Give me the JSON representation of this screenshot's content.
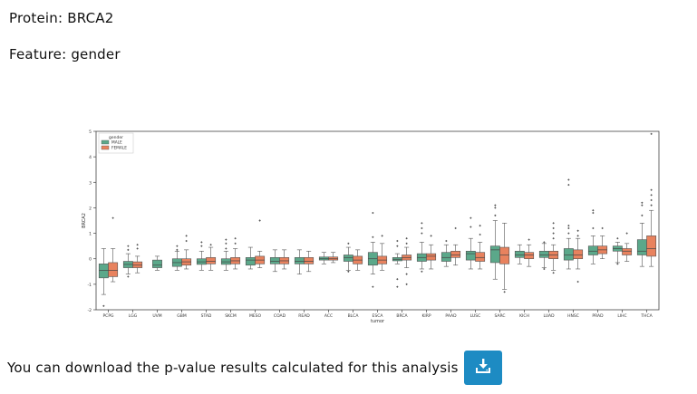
{
  "protein_prefix": "Protein: ",
  "protein": "BRCA2",
  "feature_prefix": "Feature: ",
  "feature": "gender",
  "download": {
    "text": "You can download the p-value results calculated for this analysis",
    "icon": "download-icon"
  },
  "colors": {
    "male": "#5ba88a",
    "female": "#e8825e",
    "accent": "#1d8bc3"
  },
  "chart_data": {
    "type": "boxplot",
    "xlabel": "tumor",
    "ylabel": "BRCA2",
    "ylim": [
      -2,
      5
    ],
    "yticks": [
      -2,
      -1,
      0,
      1,
      2,
      3,
      4,
      5
    ],
    "legend": {
      "title": "gender",
      "placement": "top-left",
      "entries": [
        "MALE",
        "FEMALE"
      ]
    },
    "categories": [
      "PCPG",
      "LGG",
      "UVM",
      "GBM",
      "STAD",
      "SKCM",
      "MESO",
      "COAD",
      "READ",
      "ACC",
      "BLCA",
      "ESCA",
      "BRCA",
      "KIRP",
      "PAAD",
      "LUSC",
      "SARC",
      "KICH",
      "LUAD",
      "HNSC",
      "PRAD",
      "LIHC",
      "THCA"
    ],
    "series": [
      {
        "name": "MALE",
        "boxes": [
          {
            "min": -1.4,
            "q1": -0.75,
            "med": -0.45,
            "q3": -0.2,
            "max": 0.4,
            "out": [
              -1.85
            ]
          },
          {
            "min": -0.6,
            "q1": -0.35,
            "med": -0.22,
            "q3": -0.1,
            "max": 0.2,
            "out": [
              0.35,
              0.5,
              -0.7
            ]
          },
          {
            "min": -0.45,
            "q1": -0.35,
            "med": -0.25,
            "q3": -0.05,
            "max": 0.1,
            "out": []
          },
          {
            "min": -0.45,
            "q1": -0.3,
            "med": -0.15,
            "q3": 0.0,
            "max": 0.3,
            "out": [
              0.35,
              0.5
            ]
          },
          {
            "min": -0.45,
            "q1": -0.22,
            "med": -0.12,
            "q3": 0.0,
            "max": 0.3,
            "out": [
              0.5,
              0.65
            ]
          },
          {
            "min": -0.45,
            "q1": -0.22,
            "med": -0.12,
            "q3": 0.0,
            "max": 0.3,
            "out": [
              0.4,
              0.6,
              0.75
            ]
          },
          {
            "min": -0.4,
            "q1": -0.25,
            "med": -0.05,
            "q3": 0.05,
            "max": 0.45,
            "out": []
          },
          {
            "min": -0.5,
            "q1": -0.2,
            "med": -0.1,
            "q3": 0.05,
            "max": 0.35,
            "out": []
          },
          {
            "min": -0.6,
            "q1": -0.2,
            "med": -0.1,
            "q3": 0.05,
            "max": 0.35,
            "out": []
          },
          {
            "min": -0.2,
            "q1": -0.05,
            "med": 0.0,
            "q3": 0.07,
            "max": 0.25,
            "out": []
          },
          {
            "min": -0.45,
            "q1": -0.1,
            "med": 0.05,
            "q3": 0.15,
            "max": 0.45,
            "out": [
              0.6,
              -0.5
            ]
          },
          {
            "min": -0.6,
            "q1": -0.25,
            "med": 0.0,
            "q3": 0.25,
            "max": 0.65,
            "out": [
              0.85,
              1.8,
              -1.1
            ]
          },
          {
            "min": -0.2,
            "q1": -0.08,
            "med": -0.02,
            "q3": 0.05,
            "max": 0.2,
            "out": [
              0.5,
              0.7,
              -0.8,
              -1.1
            ]
          },
          {
            "min": -0.4,
            "q1": -0.1,
            "med": 0.05,
            "q3": 0.2,
            "max": 0.65,
            "out": [
              1.0,
              1.2,
              1.4,
              -0.5
            ]
          },
          {
            "min": -0.3,
            "q1": -0.1,
            "med": 0.05,
            "q3": 0.25,
            "max": 0.55,
            "out": [
              0.7
            ]
          },
          {
            "min": -0.4,
            "q1": -0.05,
            "med": 0.2,
            "q3": 0.3,
            "max": 0.8,
            "out": [
              1.25,
              1.6
            ]
          },
          {
            "min": -0.8,
            "q1": -0.15,
            "med": 0.35,
            "q3": 0.5,
            "max": 1.5,
            "out": [
              1.7,
              2.0,
              2.1
            ]
          },
          {
            "min": -0.2,
            "q1": 0.05,
            "med": 0.15,
            "q3": 0.3,
            "max": 0.55,
            "out": []
          },
          {
            "min": -0.35,
            "q1": 0.05,
            "med": 0.15,
            "q3": 0.3,
            "max": 0.6,
            "out": [
              0.65,
              -0.4
            ]
          },
          {
            "min": -0.4,
            "q1": -0.05,
            "med": 0.15,
            "q3": 0.4,
            "max": 0.8,
            "out": [
              1.0,
              1.2,
              1.3,
              2.9,
              3.1
            ]
          },
          {
            "min": -0.2,
            "q1": 0.15,
            "med": 0.3,
            "q3": 0.5,
            "max": 0.9,
            "out": [
              1.2,
              1.8,
              1.9
            ]
          },
          {
            "min": -0.15,
            "q1": 0.3,
            "med": 0.4,
            "q3": 0.5,
            "max": 0.65,
            "out": [
              -0.2,
              0.8
            ]
          },
          {
            "min": -0.3,
            "q1": 0.15,
            "med": 0.3,
            "q3": 0.75,
            "max": 1.4,
            "out": [
              1.7,
              2.1,
              2.2
            ]
          }
        ]
      },
      {
        "name": "FEMALE",
        "boxes": [
          {
            "min": -0.9,
            "q1": -0.7,
            "med": -0.45,
            "q3": -0.15,
            "max": 0.4,
            "out": [
              1.6
            ]
          },
          {
            "min": -0.55,
            "q1": -0.35,
            "med": -0.25,
            "q3": -0.12,
            "max": 0.1,
            "out": [
              0.4,
              0.55
            ]
          },
          null,
          {
            "min": -0.4,
            "q1": -0.25,
            "med": -0.12,
            "q3": 0.0,
            "max": 0.35,
            "out": [
              0.7,
              0.9
            ]
          },
          {
            "min": -0.45,
            "q1": -0.2,
            "med": -0.1,
            "q3": 0.05,
            "max": 0.45,
            "out": [
              0.55
            ]
          },
          {
            "min": -0.4,
            "q1": -0.2,
            "med": -0.08,
            "q3": 0.05,
            "max": 0.4,
            "out": [
              0.6,
              0.8
            ]
          },
          {
            "min": -0.35,
            "q1": -0.2,
            "med": -0.05,
            "q3": 0.1,
            "max": 0.3,
            "out": [
              1.5
            ]
          },
          {
            "min": -0.4,
            "q1": -0.2,
            "med": -0.08,
            "q3": 0.05,
            "max": 0.35,
            "out": []
          },
          {
            "min": -0.5,
            "q1": -0.2,
            "med": -0.1,
            "q3": 0.05,
            "max": 0.3,
            "out": []
          },
          {
            "min": -0.15,
            "q1": -0.05,
            "med": 0.0,
            "q3": 0.07,
            "max": 0.25,
            "out": []
          },
          {
            "min": -0.45,
            "q1": -0.2,
            "med": -0.05,
            "q3": 0.1,
            "max": 0.35,
            "out": []
          },
          {
            "min": -0.45,
            "q1": -0.2,
            "med": -0.05,
            "q3": 0.1,
            "max": 0.6,
            "out": [
              0.9
            ]
          },
          {
            "min": -0.35,
            "q1": -0.05,
            "med": 0.05,
            "q3": 0.15,
            "max": 0.45,
            "out": [
              0.6,
              0.8,
              -0.6,
              -1.0
            ]
          },
          {
            "min": -0.4,
            "q1": -0.05,
            "med": 0.1,
            "q3": 0.2,
            "max": 0.55,
            "out": [
              0.9
            ]
          },
          {
            "min": -0.25,
            "q1": 0.05,
            "med": 0.15,
            "q3": 0.3,
            "max": 0.55,
            "out": [
              1.2
            ]
          },
          {
            "min": -0.4,
            "q1": -0.1,
            "med": 0.05,
            "q3": 0.25,
            "max": 0.65,
            "out": [
              0.95,
              1.3
            ]
          },
          {
            "min": -1.2,
            "q1": -0.2,
            "med": 0.15,
            "q3": 0.45,
            "max": 1.4,
            "out": [
              -1.3
            ]
          },
          {
            "min": -0.3,
            "q1": 0.0,
            "med": 0.15,
            "q3": 0.25,
            "max": 0.55,
            "out": [
              0.75
            ]
          },
          {
            "min": -0.45,
            "q1": 0.0,
            "med": 0.15,
            "q3": 0.3,
            "max": 0.55,
            "out": [
              0.8,
              1.0,
              1.2,
              1.4,
              -0.55
            ]
          },
          {
            "min": -0.4,
            "q1": 0.0,
            "med": 0.15,
            "q3": 0.35,
            "max": 0.8,
            "out": [
              0.9,
              1.1,
              -0.9
            ]
          },
          {
            "min": 0.0,
            "q1": 0.2,
            "med": 0.35,
            "q3": 0.5,
            "max": 0.9,
            "out": [
              1.2
            ]
          },
          {
            "min": -0.1,
            "q1": 0.15,
            "med": 0.3,
            "q3": 0.4,
            "max": 0.6,
            "out": [
              1.0
            ]
          },
          {
            "min": -0.3,
            "q1": 0.1,
            "med": 0.4,
            "q3": 0.9,
            "max": 1.9,
            "out": [
              2.1,
              2.3,
              2.5,
              2.7,
              4.9
            ]
          }
        ]
      }
    ]
  }
}
